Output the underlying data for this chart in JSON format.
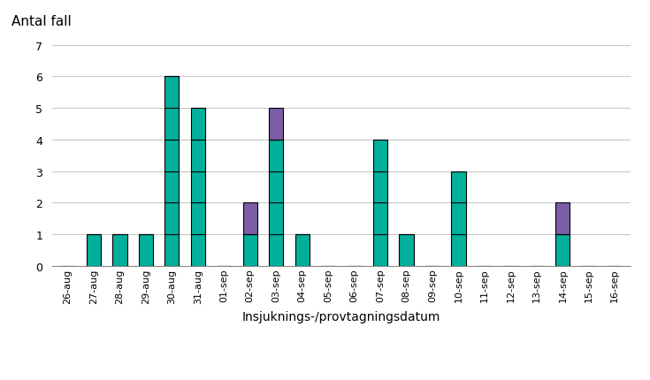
{
  "categories": [
    "26-aug",
    "27-aug",
    "28-aug",
    "29-aug",
    "30-aug",
    "31-aug",
    "01-sep",
    "02-sep",
    "03-sep",
    "04-sep",
    "05-sep",
    "06-sep",
    "07-sep",
    "08-sep",
    "09-sep",
    "10-sep",
    "11-sep",
    "12-sep",
    "13-sep",
    "14-sep",
    "15-sep",
    "16-sep"
  ],
  "teal_values": [
    0,
    1,
    1,
    1,
    6,
    5,
    0,
    1,
    4,
    1,
    0,
    0,
    4,
    1,
    0,
    3,
    0,
    0,
    0,
    1,
    0,
    0
  ],
  "purple_values": [
    0,
    0,
    0,
    0,
    0,
    0,
    0,
    1,
    1,
    0,
    0,
    0,
    0,
    0,
    0,
    0,
    0,
    0,
    0,
    1,
    0,
    0
  ],
  "teal_color": "#00B09B",
  "purple_color": "#7B5EA7",
  "edge_color": "#000000",
  "ylabel": "Antal fall",
  "xlabel": "Insjuknings-/provtagningsdatum",
  "ylim": [
    0,
    7
  ],
  "yticks": [
    0,
    1,
    2,
    3,
    4,
    5,
    6,
    7
  ],
  "background_color": "#ffffff",
  "grid_color": "#c8c8c8",
  "bar_width": 0.55
}
